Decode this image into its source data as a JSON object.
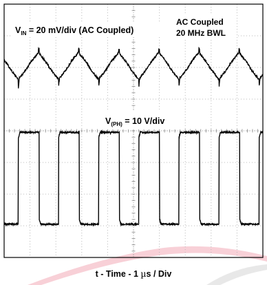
{
  "chart_data": {
    "type": "line",
    "grid": true,
    "divisions": {
      "x": 10,
      "y": 8
    },
    "xlabel": {
      "prefix": "t - Time - 1 ",
      "mu": "µ",
      "suffix": "s / Div"
    },
    "time_per_div_us": 1,
    "annotations": {
      "vin": {
        "v": "V",
        "sub": "IN",
        "rest": " = 20 mV/div (AC Coupled)"
      },
      "ac_coupled": {
        "line1": "AC Coupled",
        "line2": "20 MHz BWL"
      },
      "vph": {
        "v": "V",
        "sub": "(PH)",
        "rest": " = 10 V/div"
      }
    },
    "series": [
      {
        "key": "vin",
        "waveform": "ripple",
        "period_us": 1.55,
        "first_edge_us": 0.55,
        "amplitude_div": 0.85,
        "center_div": 1.95
      },
      {
        "key": "vph",
        "waveform": "square",
        "period_us": 1.55,
        "first_rise_us": 0.55,
        "duty": 0.52,
        "high_div": 4.05,
        "low_div": 6.95
      }
    ],
    "colors": {
      "grid": "#b8b8b8",
      "trace": "#000000",
      "watermark": "#f2aab6"
    }
  }
}
